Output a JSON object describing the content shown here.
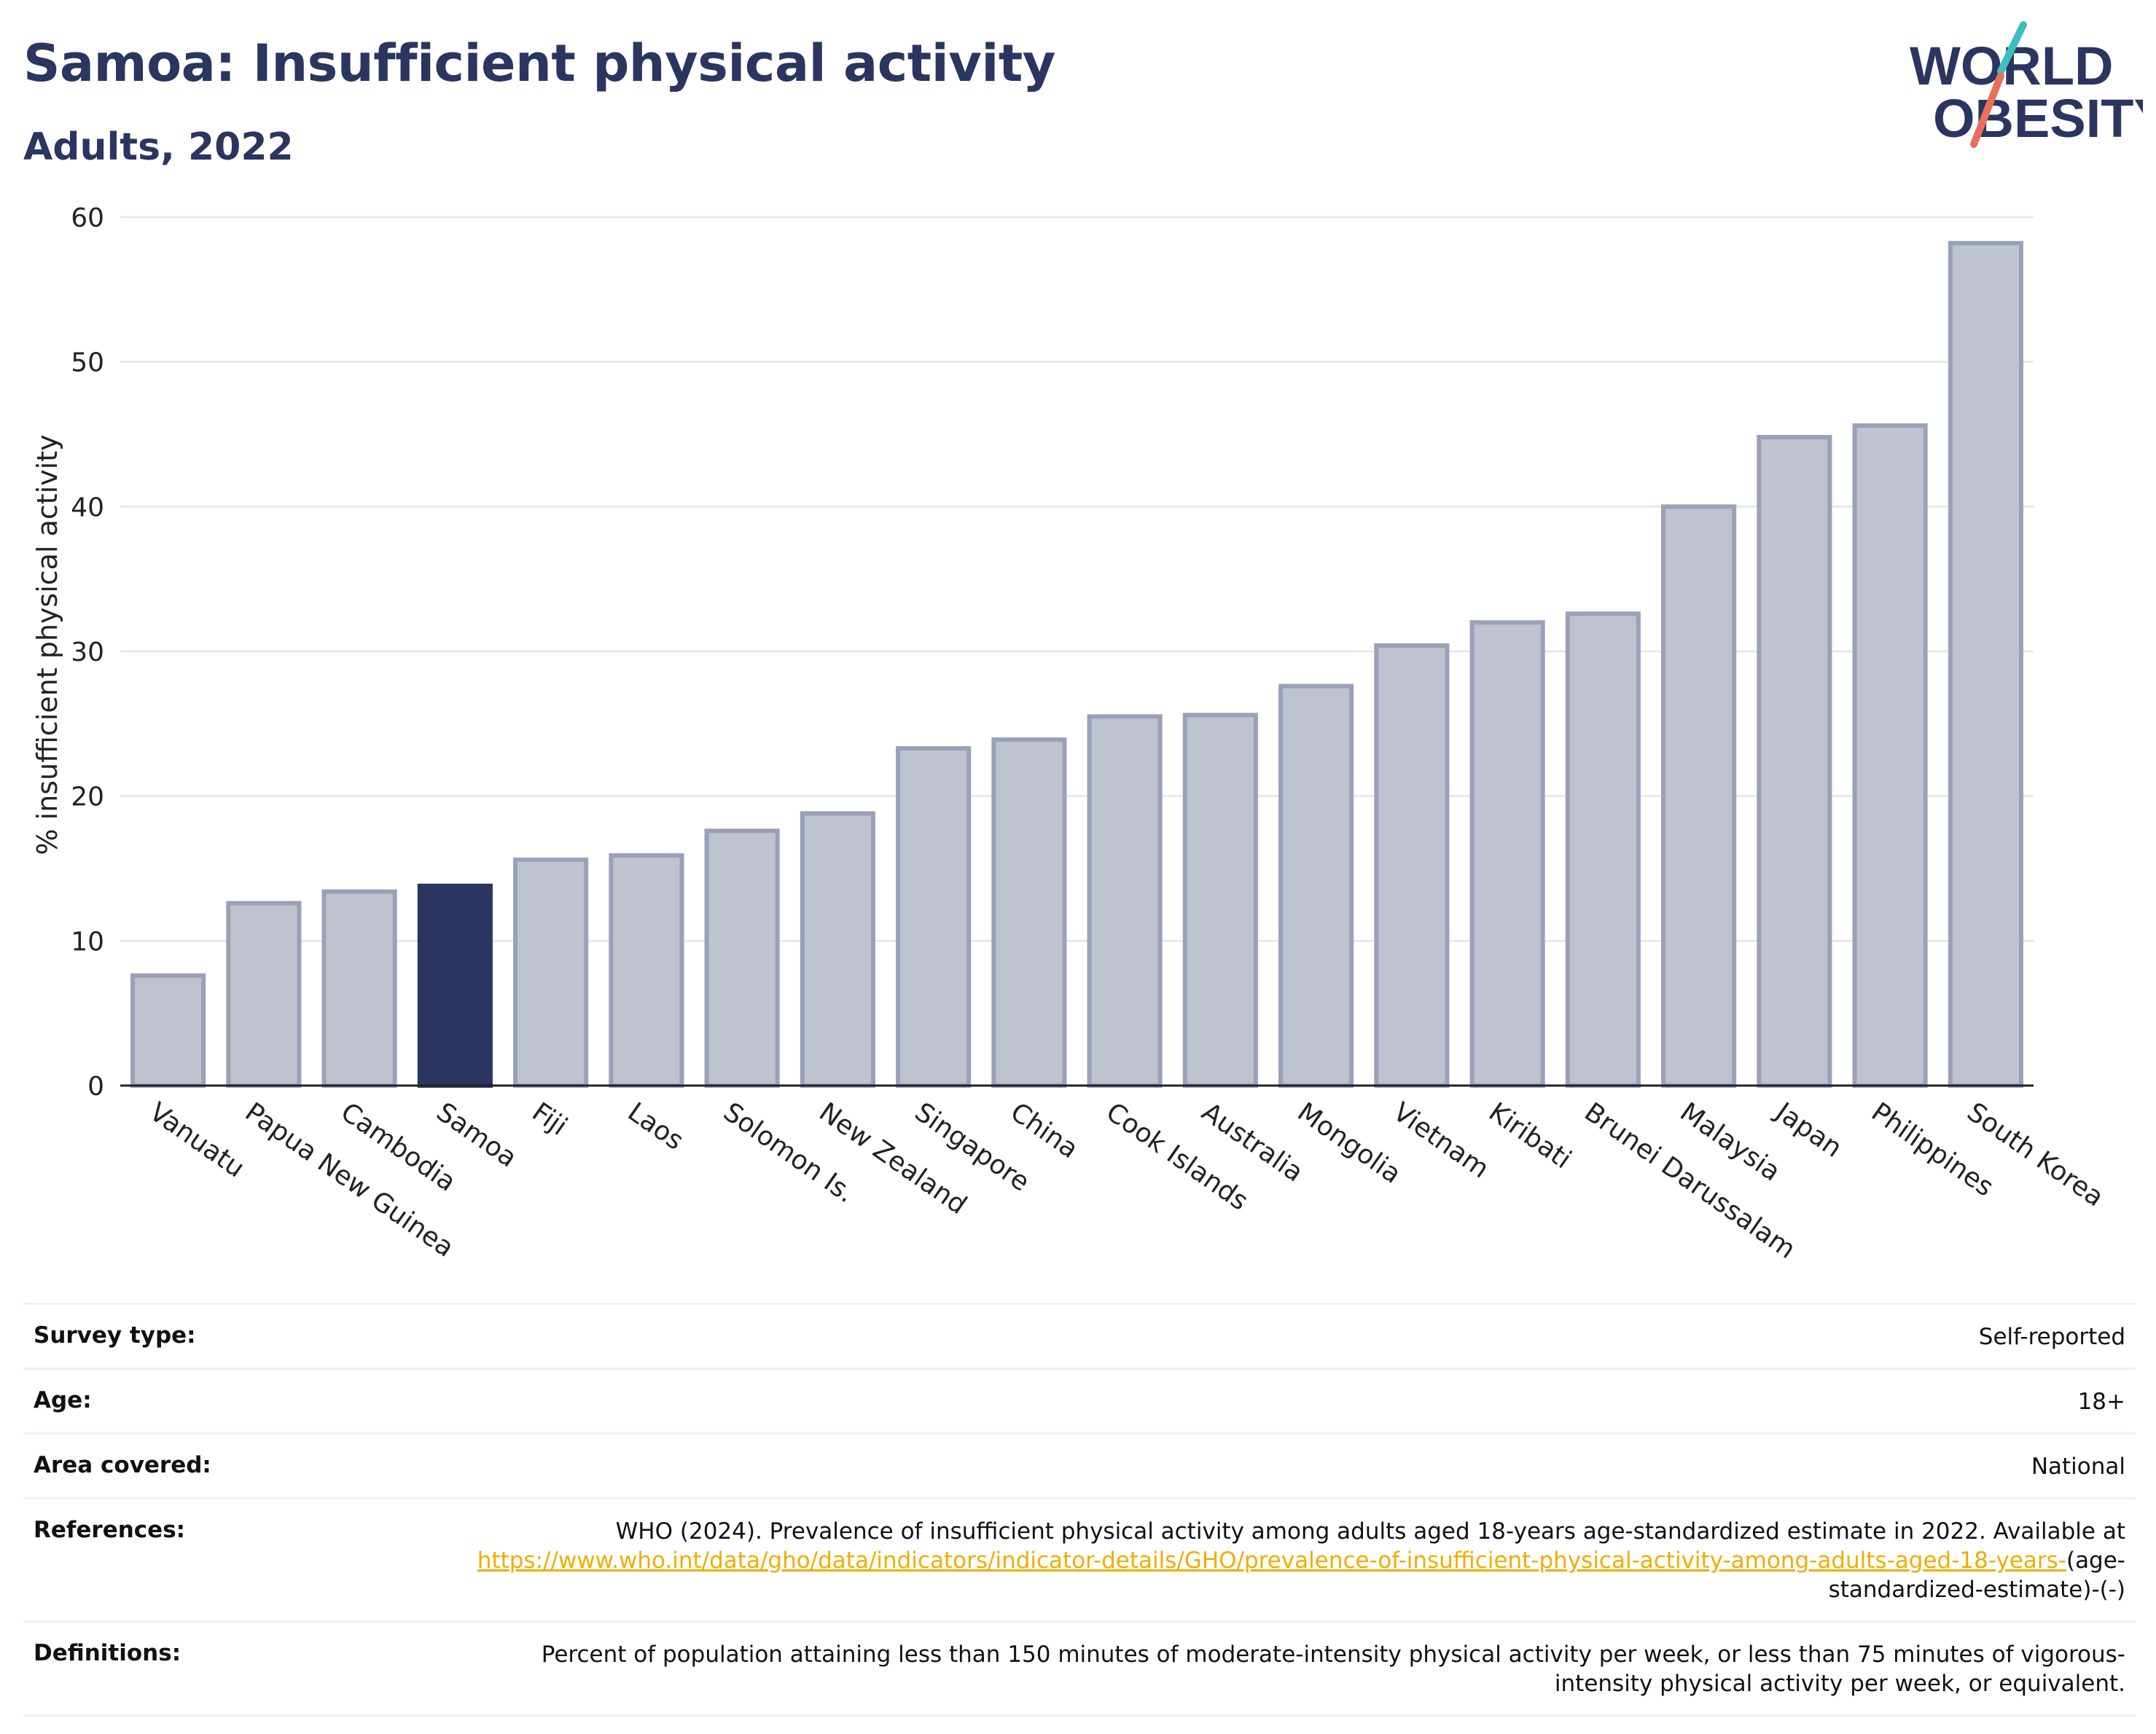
{
  "header": {
    "title": "Samoa: Insufficient physical activity",
    "subtitle": "Adults, 2022"
  },
  "logo": {
    "line1": "WORLD",
    "line2": "OBESITY",
    "accent_teal": "#3bbfbf",
    "accent_coral": "#e8705a"
  },
  "colors": {
    "highlight_bar": "#2a3560",
    "bar_fill": "#bfc2cf",
    "bar_stroke": "#9aa0b8",
    "grid": "#e6e8ef",
    "link": "#f0ad00"
  },
  "chart_data": {
    "type": "bar",
    "title": "Samoa: Insufficient physical activity",
    "subtitle": "Adults, 2022",
    "ylabel": "% insufficient physical activity",
    "xlabel": "",
    "ylim": [
      0,
      60
    ],
    "yticks": [
      0,
      10,
      20,
      30,
      40,
      50,
      60
    ],
    "grid": true,
    "highlight": "Samoa",
    "categories": [
      "Vanuatu",
      "Papua New Guinea",
      "Cambodia",
      "Samoa",
      "Fiji",
      "Laos",
      "Solomon Is.",
      "New Zealand",
      "Singapore",
      "China",
      "Cook Islands",
      "Australia",
      "Mongolia",
      "Vietnam",
      "Kiribati",
      "Brunei Darussalam",
      "Malaysia",
      "Japan",
      "Philippines",
      "South Korea"
    ],
    "values": [
      7.6,
      12.6,
      13.4,
      13.8,
      15.6,
      15.9,
      17.6,
      18.8,
      23.3,
      23.9,
      25.5,
      25.6,
      27.6,
      30.4,
      32.0,
      32.6,
      40.0,
      44.8,
      45.6,
      58.2
    ]
  },
  "info": {
    "survey_type_label": "Survey type:",
    "survey_type_value": "Self-reported",
    "age_label": "Age:",
    "age_value": "18+",
    "area_label": "Area covered:",
    "area_value": "National",
    "references_label": "References:",
    "references_text": "WHO (2024). Prevalence of insufficient physical activity among adults aged 18-years age-standardized estimate in 2022. Available at",
    "references_link": "https://www.who.int/data/gho/data/indicators/indicator-details/GHO/prevalence-of-insufficient-physical-activity-among-adults-aged-18-years-",
    "references_suffix": "(age-standardized-estimate)-(-)",
    "definitions_label": "Definitions:",
    "definitions_text": "Percent of population attaining less than 150 minutes of moderate-intensity physical activity per week, or less than 75 minutes of vigorous-intensity physical activity per week, or equivalent."
  }
}
